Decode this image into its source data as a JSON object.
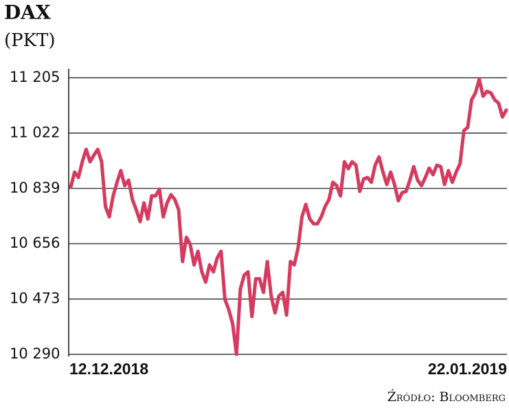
{
  "chart_data": {
    "type": "line",
    "title": "DAX",
    "subtitle": "(PKT)",
    "source": "Źródło: Bloomberg",
    "categories": [
      "12.12.2018",
      null,
      null,
      null,
      null,
      null,
      null,
      null,
      null,
      null,
      null,
      null,
      null,
      null,
      null,
      null,
      null,
      null,
      null,
      null,
      null,
      null,
      null,
      null,
      null,
      null,
      null,
      null,
      null,
      null,
      null,
      null,
      null,
      null,
      null,
      null,
      null,
      null,
      null,
      null,
      null,
      null,
      null,
      null,
      null,
      null,
      null,
      null,
      null,
      null,
      null,
      null,
      null,
      null,
      null,
      null,
      null,
      null,
      null,
      null,
      null,
      null,
      null,
      null,
      null,
      null,
      null,
      null,
      null,
      null,
      null,
      null,
      null,
      null,
      null,
      null,
      null,
      null,
      null,
      null,
      null,
      null,
      null,
      null,
      null,
      null,
      null,
      null,
      null,
      null,
      null,
      null,
      null,
      null,
      null,
      null,
      null,
      null,
      null,
      null,
      null,
      null,
      null,
      null,
      null,
      null,
      null,
      null,
      null,
      null,
      null,
      null,
      null,
      "22.01.2019"
    ],
    "values": [
      10843,
      10893,
      10875,
      10927,
      10968,
      10927,
      10949,
      10968,
      10927,
      10779,
      10745,
      10814,
      10859,
      10898,
      10848,
      10866,
      10802,
      10768,
      10729,
      10791,
      10738,
      10814,
      10814,
      10836,
      10745,
      10791,
      10818,
      10802,
      10768,
      10597,
      10677,
      10654,
      10586,
      10631,
      10563,
      10529,
      10586,
      10563,
      10609,
      10631,
      10472,
      10438,
      10392,
      10290,
      10506,
      10552,
      10563,
      10415,
      10540,
      10540,
      10495,
      10597,
      10483,
      10427,
      10483,
      10495,
      10420,
      10597,
      10586,
      10643,
      10745,
      10786,
      10738,
      10722,
      10722,
      10745,
      10779,
      10802,
      10859,
      10848,
      10814,
      10927,
      10904,
      10927,
      10916,
      10829,
      10870,
      10875,
      10859,
      10916,
      10943,
      10893,
      10852,
      10893,
      10852,
      10798,
      10825,
      10829,
      10866,
      10911,
      10866,
      10848,
      10875,
      10906,
      10884,
      10916,
      10911,
      10852,
      10898,
      10859,
      10893,
      10920,
      11030,
      11041,
      11132,
      11155,
      11200,
      11144,
      11160,
      11155,
      11132,
      11121,
      11075,
      11098
    ],
    "color": "#d63a5e",
    "ylim": [
      10290,
      11205
    ],
    "yticks": [
      {
        "value": 10290,
        "label": "10 290"
      },
      {
        "value": 10473,
        "label": "10 473"
      },
      {
        "value": 10656,
        "label": "10 656"
      },
      {
        "value": 10839,
        "label": "10 839"
      },
      {
        "value": 11022,
        "label": "11 022"
      },
      {
        "value": 11205,
        "label": "11 205"
      }
    ],
    "grid": true
  }
}
